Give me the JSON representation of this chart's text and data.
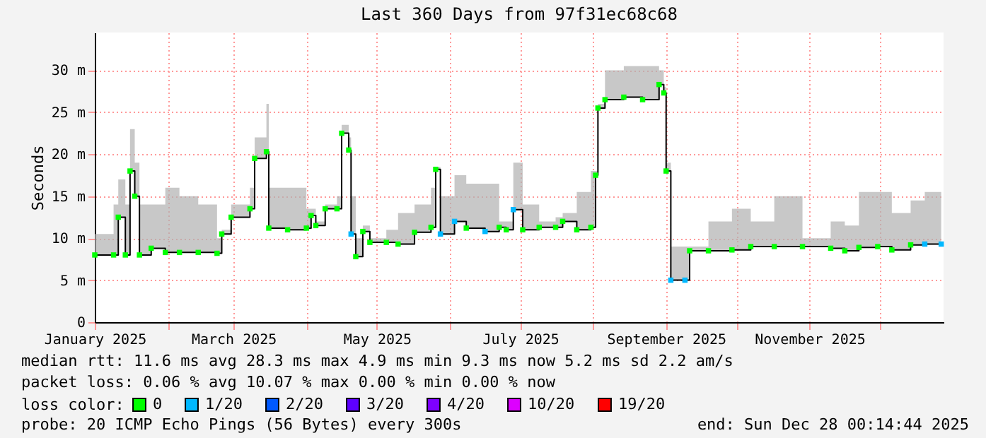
{
  "chart_data": {
    "type": "line",
    "title": "Last 360 Days from 97f31ec68c68",
    "ylabel": "Seconds",
    "legend_title": "loss color:",
    "legend": "bottom",
    "grid": true,
    "line_style": "solid",
    "x": [
      "2025-01-01",
      "2025-01-09",
      "2025-01-11",
      "2025-01-14",
      "2025-01-16",
      "2025-01-18",
      "2025-01-20",
      "2025-01-25",
      "2025-01-31",
      "2025-02-06",
      "2025-02-14",
      "2025-02-22",
      "2025-02-24",
      "2025-02-28",
      "2025-03-08",
      "2025-03-10",
      "2025-03-15",
      "2025-03-16",
      "2025-03-24",
      "2025-04-01",
      "2025-04-03",
      "2025-04-05",
      "2025-04-09",
      "2025-04-14",
      "2025-04-16",
      "2025-04-19",
      "2025-04-20",
      "2025-04-22",
      "2025-04-25",
      "2025-04-28",
      "2025-05-05",
      "2025-05-10",
      "2025-05-17",
      "2025-05-24",
      "2025-05-26",
      "2025-05-28",
      "2025-06-03",
      "2025-06-08",
      "2025-06-16",
      "2025-06-22",
      "2025-06-25",
      "2025-06-28",
      "2025-07-02",
      "2025-07-09",
      "2025-07-16",
      "2025-07-19",
      "2025-07-25",
      "2025-07-31",
      "2025-08-02",
      "2025-08-03",
      "2025-08-06",
      "2025-08-14",
      "2025-08-22",
      "2025-08-29",
      "2025-08-31",
      "2025-09-01",
      "2025-09-03",
      "2025-09-09",
      "2025-09-11",
      "2025-09-19",
      "2025-09-29",
      "2025-10-07",
      "2025-10-17",
      "2025-10-29",
      "2025-11-10",
      "2025-11-16",
      "2025-11-22",
      "2025-11-30",
      "2025-12-06",
      "2025-12-14",
      "2025-12-20",
      "2025-12-27"
    ],
    "xlim": [
      "2025-01-01",
      "2025-12-28"
    ],
    "xticks": [
      {
        "value": "2025-01-01",
        "label": "January 2025"
      },
      {
        "value": "2025-02-01",
        "label": null
      },
      {
        "value": "2025-03-01",
        "label": "March 2025"
      },
      {
        "value": "2025-04-01",
        "label": null
      },
      {
        "value": "2025-05-01",
        "label": "May 2025"
      },
      {
        "value": "2025-06-01",
        "label": null
      },
      {
        "value": "2025-07-01",
        "label": "July 2025"
      },
      {
        "value": "2025-08-01",
        "label": null
      },
      {
        "value": "2025-09-01",
        "label": "September 2025"
      },
      {
        "value": "2025-10-01",
        "label": null
      },
      {
        "value": "2025-11-01",
        "label": "November 2025"
      },
      {
        "value": "2025-12-01",
        "label": null
      }
    ],
    "ylim": [
      0,
      34.5
    ],
    "yticks": [
      0,
      {
        "value": 5,
        "label": "5 m"
      },
      {
        "value": 10,
        "label": "10 m"
      },
      {
        "value": 15,
        "label": "15 m"
      },
      {
        "value": 20,
        "label": "20 m"
      },
      {
        "value": 25,
        "label": "25 m"
      },
      {
        "value": 30,
        "label": "30 m"
      }
    ],
    "series": [
      {
        "type": "step",
        "color": "#000000",
        "values": [
          8.0,
          8.0,
          12.5,
          8.0,
          18.0,
          15.0,
          8.0,
          8.8,
          8.3,
          8.3,
          8.3,
          8.2,
          10.5,
          12.5,
          13.5,
          19.5,
          20.3,
          11.2,
          11.0,
          11.2,
          12.7,
          11.5,
          13.5,
          13.5,
          22.5,
          20.5,
          10.5,
          7.8,
          10.8,
          9.5,
          9.5,
          9.3,
          10.7,
          11.3,
          18.2,
          10.5,
          12.0,
          11.2,
          10.8,
          11.3,
          11.0,
          13.4,
          11.0,
          11.3,
          11.3,
          12.0,
          11.0,
          11.3,
          17.5,
          25.5,
          26.5,
          26.8,
          26.5,
          28.3,
          27.3,
          18.0,
          5.0,
          5.0,
          8.5,
          8.5,
          8.6,
          9.0,
          9.0,
          9.0,
          8.8,
          8.5,
          8.9,
          9.0,
          8.6,
          9.2,
          9.3,
          9.3
        ],
        "lower": [
          8.0,
          8.0,
          12.5,
          8.0,
          18.0,
          15.0,
          8.0,
          8.8,
          8.3,
          8.3,
          8.3,
          8.2,
          10.5,
          12.5,
          13.5,
          19.5,
          20.3,
          11.2,
          11.0,
          11.2,
          12.7,
          11.5,
          13.5,
          13.5,
          22.5,
          20.5,
          10.5,
          7.8,
          10.8,
          9.5,
          9.5,
          9.3,
          10.7,
          11.3,
          18.2,
          10.5,
          12.0,
          11.2,
          10.8,
          11.3,
          11.0,
          13.4,
          11.0,
          11.3,
          11.3,
          12.0,
          11.0,
          11.3,
          17.5,
          25.5,
          26.5,
          26.8,
          26.5,
          28.3,
          27.3,
          18.0,
          5.0,
          5.0,
          8.5,
          8.5,
          8.6,
          9.0,
          9.0,
          9.0,
          8.8,
          8.5,
          8.9,
          9.0,
          8.6,
          9.2,
          9.3,
          9.3
        ],
        "upper": [
          10.5,
          14,
          17,
          14,
          23,
          19,
          14,
          14,
          16,
          15,
          14,
          10,
          11,
          14,
          16,
          22,
          26,
          16,
          16,
          13.5,
          13.5,
          12,
          14,
          15,
          23.5,
          22,
          15,
          10,
          11.5,
          10,
          11,
          13,
          14,
          16,
          18.5,
          15,
          17.5,
          16.5,
          16.5,
          12,
          12,
          19,
          14,
          12,
          12.5,
          13,
          15.5,
          18,
          18,
          26,
          30,
          30.5,
          30.5,
          30,
          28,
          19,
          9,
          9,
          9,
          12,
          13.5,
          12,
          15,
          10,
          12,
          11.5,
          15.5,
          15.5,
          13,
          14.5,
          15.5,
          12
        ]
      },
      {
        "type": "scatter",
        "name": "0",
        "color": "#00ff00",
        "values": [
          8.0,
          8.0,
          12.5,
          8.0,
          18.0,
          15.0,
          8.0,
          8.8,
          8.3,
          8.3,
          8.3,
          8.2,
          10.5,
          12.5,
          13.5,
          19.5,
          20.3,
          11.2,
          11.0,
          11.2,
          12.7,
          11.5,
          13.5,
          13.5,
          22.5,
          20.5,
          null,
          7.8,
          10.8,
          9.5,
          9.5,
          9.3,
          10.7,
          11.3,
          18.2,
          null,
          null,
          11.2,
          null,
          11.3,
          11.0,
          null,
          11.0,
          11.3,
          11.3,
          12.0,
          11.0,
          11.3,
          17.5,
          25.5,
          26.5,
          26.8,
          26.5,
          28.3,
          27.3,
          18.0,
          null,
          null,
          8.5,
          8.5,
          8.6,
          9.0,
          9.0,
          9.0,
          8.8,
          8.5,
          8.9,
          9.0,
          8.6,
          9.2,
          null,
          null
        ]
      },
      {
        "type": "scatter",
        "name": "1/20",
        "color": "#00b8ff",
        "values": [
          null,
          null,
          null,
          null,
          null,
          null,
          null,
          null,
          null,
          null,
          null,
          null,
          null,
          null,
          null,
          null,
          null,
          null,
          null,
          null,
          null,
          null,
          null,
          null,
          null,
          null,
          10.5,
          null,
          null,
          null,
          null,
          null,
          null,
          null,
          null,
          10.5,
          12.0,
          null,
          10.8,
          null,
          null,
          13.4,
          null,
          null,
          null,
          null,
          null,
          null,
          null,
          null,
          null,
          null,
          null,
          null,
          null,
          null,
          5.0,
          5.0,
          null,
          null,
          null,
          null,
          null,
          null,
          null,
          null,
          null,
          null,
          null,
          null,
          9.3,
          9.3
        ]
      },
      {
        "type": "scatter",
        "name": "2/20",
        "color": "#0059ff",
        "values": [
          null,
          null,
          null,
          null,
          null,
          null,
          null,
          null,
          null,
          null,
          null,
          null,
          null,
          null,
          null,
          null,
          null,
          null,
          null,
          null,
          null,
          null,
          null,
          null,
          null,
          null,
          null,
          null,
          null,
          null,
          null,
          null,
          null,
          null,
          null,
          null,
          null,
          null,
          null,
          null,
          null,
          null,
          null,
          null,
          null,
          null,
          null,
          null,
          null,
          null,
          null,
          null,
          null,
          null,
          null,
          null,
          null,
          null,
          null,
          null,
          null,
          null,
          null,
          null,
          null,
          null,
          null,
          null,
          null,
          null,
          null,
          null
        ]
      },
      {
        "type": "scatter",
        "name": "3/20",
        "color": "#5e00ff",
        "values": [
          null,
          null,
          null,
          null,
          null,
          null,
          null,
          null,
          null,
          null,
          null,
          null,
          null,
          null,
          null,
          null,
          null,
          null,
          null,
          null,
          null,
          null,
          null,
          null,
          null,
          null,
          null,
          null,
          null,
          null,
          null,
          null,
          null,
          null,
          null,
          null,
          null,
          null,
          null,
          null,
          null,
          null,
          null,
          null,
          null,
          null,
          null,
          null,
          null,
          null,
          null,
          null,
          null,
          null,
          null,
          null,
          null,
          null,
          null,
          null,
          null,
          null,
          null,
          null,
          null,
          null,
          null,
          null,
          null,
          null,
          null,
          null
        ]
      },
      {
        "type": "scatter",
        "name": "4/20",
        "color": "#7e00ff",
        "values": [
          null,
          null,
          null,
          null,
          null,
          null,
          null,
          null,
          null,
          null,
          null,
          null,
          null,
          null,
          null,
          null,
          null,
          null,
          null,
          null,
          null,
          null,
          null,
          null,
          null,
          null,
          null,
          null,
          null,
          null,
          null,
          null,
          null,
          null,
          null,
          null,
          null,
          null,
          null,
          null,
          null,
          null,
          null,
          null,
          null,
          null,
          null,
          null,
          null,
          null,
          null,
          null,
          null,
          null,
          null,
          null,
          null,
          null,
          null,
          null,
          null,
          null,
          null,
          null,
          null,
          null,
          null,
          null,
          null,
          null,
          null,
          null
        ]
      },
      {
        "type": "scatter",
        "name": "10/20",
        "color": "#dd00ff",
        "values": [
          null,
          null,
          null,
          null,
          null,
          null,
          null,
          null,
          null,
          null,
          null,
          null,
          null,
          null,
          null,
          null,
          null,
          null,
          null,
          null,
          null,
          null,
          null,
          null,
          null,
          null,
          null,
          null,
          null,
          null,
          null,
          null,
          null,
          null,
          null,
          null,
          null,
          null,
          null,
          null,
          null,
          null,
          null,
          null,
          null,
          null,
          null,
          null,
          null,
          null,
          null,
          null,
          null,
          null,
          null,
          null,
          null,
          null,
          null,
          null,
          null,
          null,
          null,
          null,
          null,
          null,
          null,
          null,
          null,
          null,
          null,
          null
        ]
      },
      {
        "type": "scatter",
        "name": "19/20",
        "color": "#ff0000",
        "values": [
          null,
          null,
          null,
          null,
          null,
          null,
          null,
          null,
          null,
          null,
          null,
          null,
          null,
          null,
          null,
          null,
          null,
          null,
          null,
          null,
          null,
          null,
          null,
          null,
          null,
          null,
          null,
          null,
          null,
          null,
          null,
          null,
          null,
          null,
          null,
          null,
          null,
          null,
          null,
          null,
          null,
          null,
          null,
          null,
          null,
          null,
          null,
          null,
          null,
          null,
          null,
          null,
          null,
          null,
          null,
          null,
          null,
          null,
          null,
          null,
          null,
          null,
          null,
          null,
          null,
          null,
          null,
          null,
          null,
          null,
          null,
          null
        ]
      }
    ],
    "annotations": [
      "median rtt:  11.6 ms avg  28.3 ms max   4.9 ms min   9.3 ms now   5.2 ms sd   2.2   am/s",
      "packet loss: 0.06 % avg  10.07 % max   0.00 % min   0.00 % now",
      "probe:        20 ICMP Echo Pings (56 Bytes) every 300s",
      "end: Sun Dec 28 00:14:44 2025"
    ]
  }
}
